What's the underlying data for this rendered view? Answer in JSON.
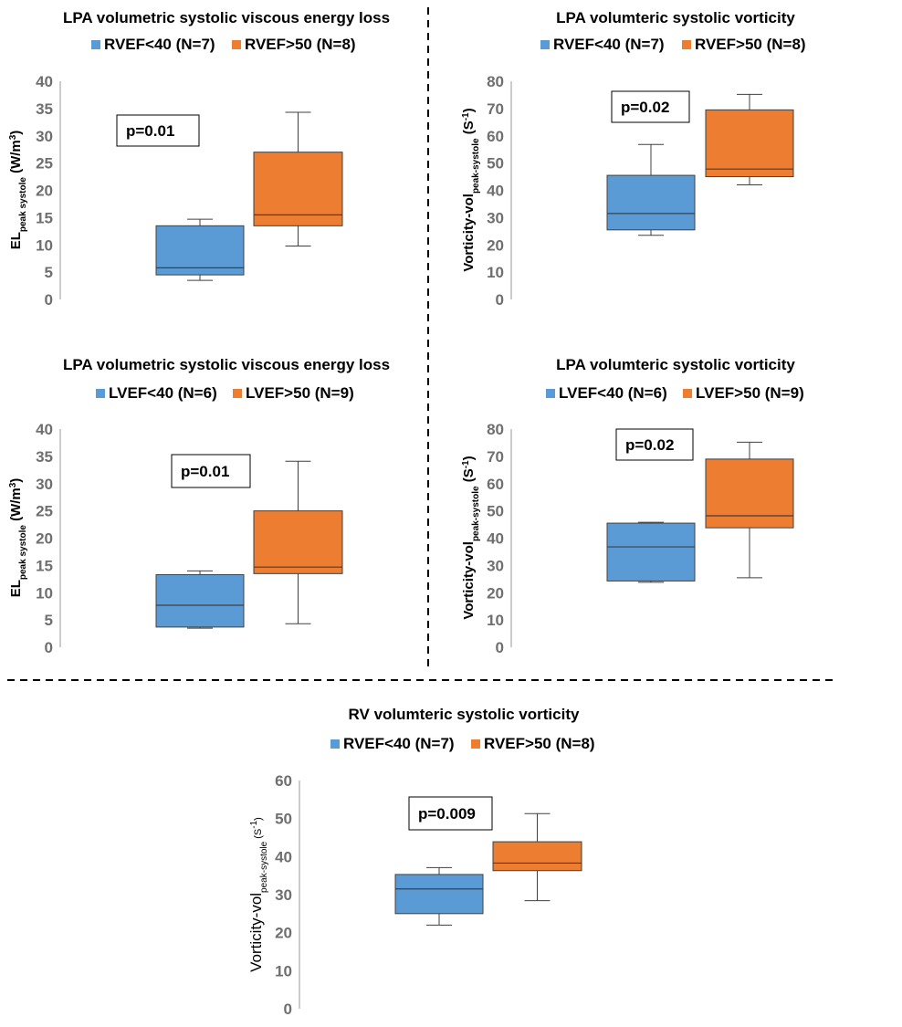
{
  "colors": {
    "group1": "#5b9bd5",
    "group1_edge": "#41719c",
    "group2": "#ed7d31",
    "group2_edge": "#ae5a21",
    "axis": "#999999",
    "tick": "#6f6f6f",
    "divider": "#000000"
  },
  "chart_data": [
    {
      "id": "p1",
      "type": "box",
      "title": "LPA volumetric systolic viscous energy loss",
      "ylabel": {
        "main": "EL",
        "sub": "peak systole",
        "unit": " (W/m",
        "sup": "3",
        "close": ")"
      },
      "ylim": [
        0,
        40
      ],
      "yticks": [
        0,
        5,
        10,
        15,
        20,
        25,
        30,
        35,
        40
      ],
      "pvalue": "p=0.01",
      "series": [
        {
          "name": "RVEF<40 (N=7)",
          "color": "#5b9bd5",
          "min": 3.5,
          "q1": 4.5,
          "median": 5.8,
          "q3": 13.5,
          "max": 14.7
        },
        {
          "name": "RVEF>50 (N=8)",
          "color": "#ed7d31",
          "min": 9.8,
          "q1": 13.5,
          "median": 15.5,
          "q3": 27,
          "max": 34.3
        }
      ]
    },
    {
      "id": "p2",
      "type": "box",
      "title": "LPA volumteric systolic vorticity",
      "ylabel": {
        "main": "Vorticity-vol",
        "sub": "peak-systole",
        "unit": "  (S",
        "sup": "-1",
        "close": ")"
      },
      "ylim": [
        0,
        80
      ],
      "yticks": [
        0,
        10,
        20,
        30,
        40,
        50,
        60,
        70,
        80
      ],
      "pvalue": "p=0.02",
      "series": [
        {
          "name": "RVEF<40 (N=7)",
          "color": "#5b9bd5",
          "min": 23.5,
          "q1": 25.5,
          "median": 31.5,
          "q3": 45.5,
          "max": 56.8
        },
        {
          "name": "RVEF>50 (N=8)",
          "color": "#ed7d31",
          "min": 42,
          "q1": 45,
          "median": 47.8,
          "q3": 69.5,
          "max": 75.2
        }
      ]
    },
    {
      "id": "p3",
      "type": "box",
      "title": "LPA volumetric systolic viscous energy loss",
      "ylabel": {
        "main": "EL",
        "sub": "peak systole",
        "unit": " (W/m",
        "sup": "3",
        "close": ")"
      },
      "ylim": [
        0,
        40
      ],
      "yticks": [
        0,
        5,
        10,
        15,
        20,
        25,
        30,
        35,
        40
      ],
      "pvalue": "p=0.01",
      "series": [
        {
          "name": "LVEF<40 (N=6)",
          "color": "#5b9bd5",
          "min": 3.5,
          "q1": 3.7,
          "median": 7.7,
          "q3": 13.3,
          "max": 14
        },
        {
          "name": "LVEF>50 (N=9)",
          "color": "#ed7d31",
          "min": 4.3,
          "q1": 13.5,
          "median": 14.7,
          "q3": 25,
          "max": 34.1
        }
      ]
    },
    {
      "id": "p4",
      "type": "box",
      "title": "LPA volumteric systolic vorticity",
      "ylabel": {
        "main": "Vorticity-vol",
        "sub": "peak-systole",
        "unit": "  (S",
        "sup": "-1",
        "close": ")"
      },
      "ylim": [
        0,
        80
      ],
      "yticks": [
        0,
        10,
        20,
        30,
        40,
        50,
        60,
        70,
        80
      ],
      "pvalue": "p=0.02",
      "series": [
        {
          "name": "LVEF<40 (N=6)",
          "color": "#5b9bd5",
          "min": 23.8,
          "q1": 24.3,
          "median": 36.8,
          "q3": 45.5,
          "max": 45.8
        },
        {
          "name": "LVEF>50 (N=9)",
          "color": "#ed7d31",
          "min": 25.5,
          "q1": 43.8,
          "median": 48.2,
          "q3": 69,
          "max": 75.2
        }
      ]
    },
    {
      "id": "p5",
      "type": "box",
      "title": "RV volumteric systolic vorticity",
      "ylabel": {
        "main": "Vorticity-vol",
        "sub": "peak-systole",
        "unit": "  (S",
        "sup": "-1",
        "close": ")"
      },
      "ylim": [
        0,
        60
      ],
      "yticks": [
        0,
        10,
        20,
        30,
        40,
        50,
        60
      ],
      "pvalue": "p=0.009",
      "series": [
        {
          "name": "RVEF<40 (N=7)",
          "color": "#5b9bd5",
          "min": 22,
          "q1": 25,
          "median": 31.5,
          "q3": 35.3,
          "max": 37.1
        },
        {
          "name": "RVEF>50 (N=8)",
          "color": "#ed7d31",
          "min": 28.4,
          "q1": 36.3,
          "median": 38.3,
          "q3": 43.9,
          "max": 51.3
        }
      ]
    }
  ]
}
